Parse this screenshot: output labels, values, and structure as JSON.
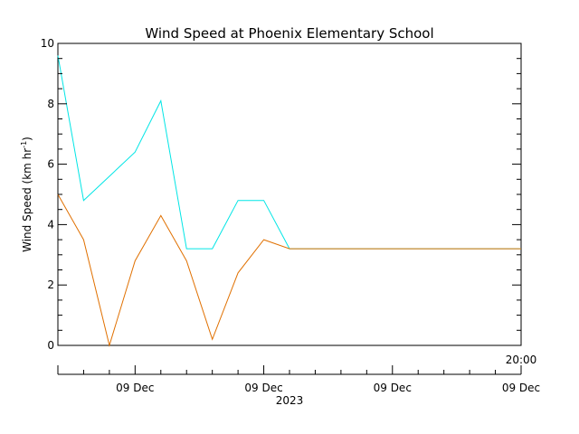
{
  "chart_data": {
    "type": "line",
    "title": "Wind Speed at Phoenix Elementary School",
    "ylabel_base": "Wind Speed (km hr",
    "ylabel_sup": "-1",
    "ylabel_end": ")",
    "ylim": [
      0,
      10
    ],
    "yticks": [
      "0",
      "2",
      "4",
      "6",
      "8",
      "10"
    ],
    "x_hours_range": [
      -3,
      15
    ],
    "top_tick_label": "20:00",
    "x_major_ticks": [
      {
        "hours": 0,
        "label": "09 Dec"
      },
      {
        "hours": 5,
        "label": "09 Dec"
      },
      {
        "hours": 10,
        "label": "09 Dec"
      },
      {
        "hours": 15,
        "label": "09 Dec"
      }
    ],
    "x_year_label": "2023",
    "grid": false,
    "series": [
      {
        "color": "#00e5e5",
        "x": [
          -3,
          -2,
          -1,
          0,
          1,
          2,
          3,
          4,
          5,
          6,
          7,
          8,
          9,
          10,
          11,
          12,
          13,
          14,
          15
        ],
        "values": [
          9.6,
          4.8,
          5.6,
          6.4,
          8.1,
          3.2,
          3.2,
          4.8,
          4.8,
          3.2,
          3.2,
          3.2,
          3.2,
          3.2,
          3.2,
          3.2,
          3.2,
          3.2,
          3.2
        ]
      },
      {
        "color": "#e07000",
        "x": [
          -3,
          -2,
          -1,
          0,
          1,
          2,
          3,
          4,
          5,
          6,
          7,
          8,
          9,
          10,
          11,
          12,
          13,
          14,
          15
        ],
        "values": [
          5.0,
          3.5,
          0.0,
          2.8,
          4.3,
          2.8,
          0.2,
          2.4,
          3.5,
          3.2,
          3.2,
          3.2,
          3.2,
          3.2,
          3.2,
          3.2,
          3.2,
          3.2,
          3.2
        ]
      }
    ]
  }
}
